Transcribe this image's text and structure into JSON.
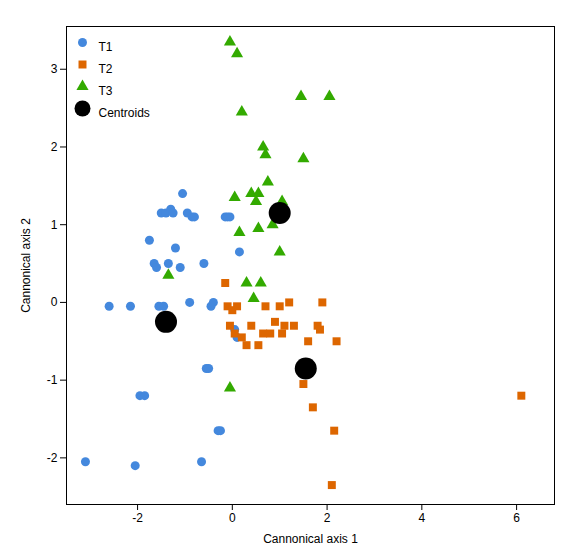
{
  "chart_data": {
    "type": "scatter",
    "xlabel": "Cannonical axis 1",
    "ylabel": "Cannonical axis 2",
    "xlim": [
      -3.5,
      6.8
    ],
    "ylim": [
      -2.6,
      3.55
    ],
    "xticks": [
      -2,
      0,
      2,
      4,
      6
    ],
    "yticks": [
      -2,
      -1,
      0,
      1,
      2,
      3
    ],
    "legend": "upper left",
    "series": [
      {
        "name": "T1",
        "color": "#4488DD",
        "marker": "circle",
        "x": [
          -3.1,
          -2.6,
          -2.15,
          -2.05,
          -1.95,
          -1.85,
          -1.75,
          -1.65,
          -1.6,
          -1.55,
          -1.5,
          -1.45,
          -1.4,
          -1.35,
          -1.3,
          -1.25,
          -1.2,
          -1.1,
          -1.05,
          -0.95,
          -0.9,
          -0.85,
          -0.8,
          -0.65,
          -0.6,
          -0.55,
          -0.5,
          -0.45,
          -0.4,
          -0.3,
          -0.25,
          -0.15,
          -0.1,
          -0.05,
          0.05,
          0.1,
          0.15
        ],
        "values": [
          -2.05,
          -0.05,
          -0.05,
          -2.1,
          -1.2,
          -1.2,
          0.8,
          0.5,
          0.45,
          -0.05,
          1.15,
          -0.05,
          1.15,
          0.5,
          1.2,
          1.15,
          0.7,
          0.45,
          1.4,
          1.15,
          0.0,
          1.1,
          1.1,
          -2.05,
          0.5,
          -0.85,
          -0.85,
          -0.05,
          0.0,
          -1.65,
          -1.65,
          1.1,
          1.1,
          1.1,
          -0.35,
          -0.45,
          0.65
        ]
      },
      {
        "name": "T2",
        "color": "#DD6600",
        "marker": "square",
        "x": [
          -0.15,
          -0.1,
          -0.05,
          0.0,
          0.05,
          0.1,
          0.2,
          0.3,
          0.4,
          0.55,
          0.65,
          0.7,
          0.8,
          0.9,
          1.0,
          1.05,
          1.1,
          1.2,
          1.3,
          1.5,
          1.6,
          1.7,
          1.8,
          1.85,
          1.9,
          2.1,
          2.15,
          2.2,
          6.1
        ],
        "values": [
          0.25,
          -0.05,
          -0.3,
          -0.1,
          -0.4,
          -0.05,
          -0.45,
          -0.55,
          -0.3,
          -0.55,
          -0.4,
          -0.05,
          -0.4,
          -0.25,
          -0.05,
          -0.4,
          -0.3,
          0.0,
          -0.3,
          -1.05,
          -0.5,
          -1.35,
          -0.3,
          -0.35,
          0.0,
          -2.35,
          -1.65,
          -0.5,
          -1.2
        ]
      },
      {
        "name": "T3",
        "color": "#33AA00",
        "marker": "triangle",
        "x": [
          -1.35,
          -0.05,
          -0.05,
          0.05,
          0.1,
          0.15,
          0.2,
          0.3,
          0.4,
          0.45,
          0.5,
          0.55,
          0.55,
          0.6,
          0.65,
          0.7,
          0.75,
          0.85,
          1.0,
          1.05,
          1.45,
          1.5,
          2.05
        ],
        "values": [
          0.35,
          -1.1,
          3.35,
          1.35,
          3.2,
          0.9,
          2.45,
          0.25,
          1.4,
          0.05,
          1.3,
          1.4,
          0.95,
          0.25,
          2.0,
          1.9,
          1.55,
          1.0,
          0.65,
          1.3,
          2.65,
          1.85,
          2.65
        ]
      },
      {
        "name": "Centroids",
        "color": "#000000",
        "marker": "circle",
        "x": [
          -1.4,
          1.0,
          1.55
        ],
        "values": [
          -0.25,
          1.15,
          -0.85
        ]
      }
    ]
  }
}
